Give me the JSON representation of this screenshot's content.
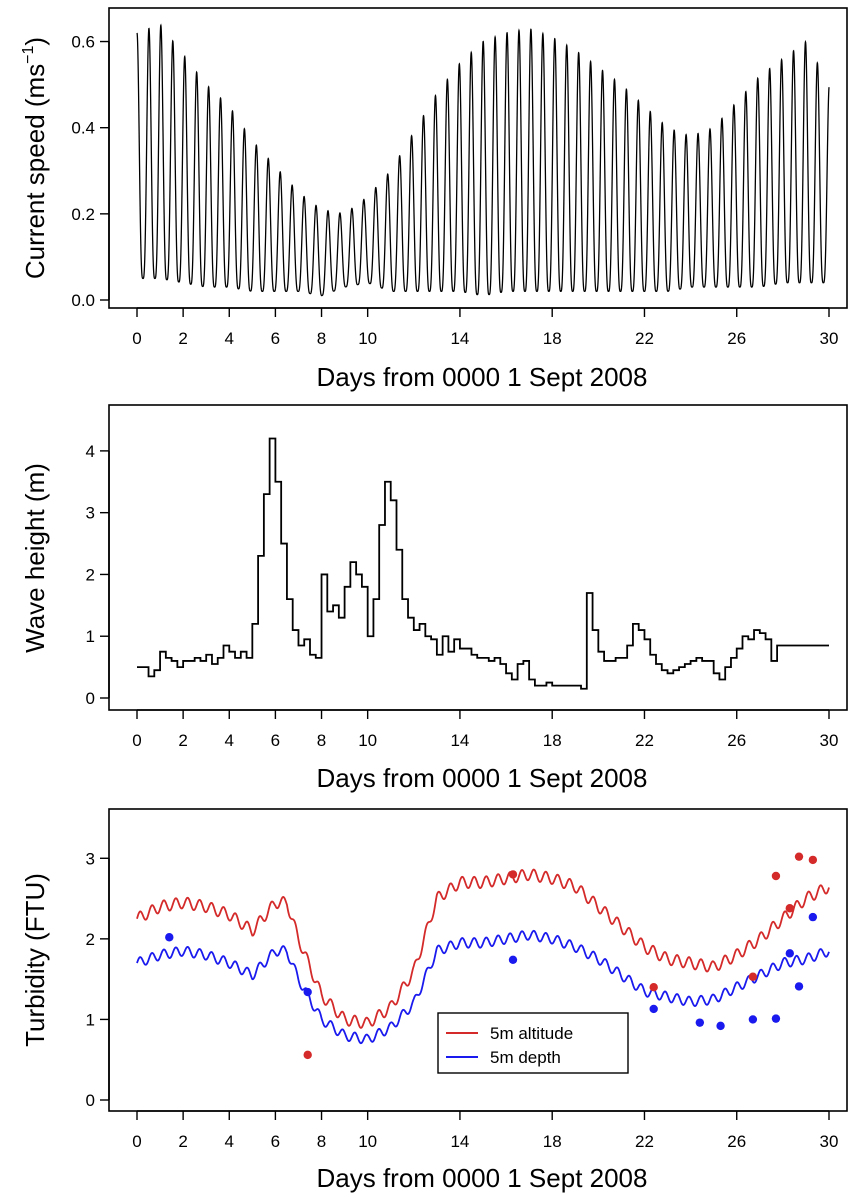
{
  "chart_data": [
    {
      "id": "current",
      "type": "line",
      "title": "",
      "xlabel": "Days from 0000 1 Sept 2008",
      "ylabel": "Current speed (ms",
      "ylabel_unit_exponent": "−1",
      "ylabel_close": ")",
      "xlim": [
        0,
        30
      ],
      "ylim": [
        0.0,
        0.65
      ],
      "x_ticks": [
        0,
        2,
        4,
        6,
        8,
        10,
        14,
        18,
        22,
        26,
        30
      ],
      "x_tick_labels": [
        "0",
        "2",
        "4",
        "6",
        "8",
        "10",
        "14",
        "18",
        "22",
        "26",
        "30"
      ],
      "y_ticks": [
        0.0,
        0.2,
        0.4,
        0.6
      ],
      "y_tick_labels": [
        "0.0",
        "0.2",
        "0.4",
        "0.6"
      ],
      "grid": false,
      "series": [
        {
          "color": "#000000",
          "description_of_signal": "semi-diurnal tidal oscillation, period ~0.5175 days",
          "tidal_period_days": 0.5175,
          "envelope_peak": {
            "x": [
              0,
              1,
              2,
              3,
              4,
              5,
              6,
              7,
              8,
              9,
              10,
              11,
              12,
              13,
              14,
              15,
              16,
              17,
              18,
              19,
              20,
              21,
              22,
              23,
              24,
              25,
              26,
              27,
              28,
              29,
              30
            ],
            "y": [
              0.62,
              0.64,
              0.57,
              0.5,
              0.45,
              0.37,
              0.31,
              0.25,
              0.21,
              0.2,
              0.24,
              0.3,
              0.39,
              0.48,
              0.55,
              0.6,
              0.62,
              0.63,
              0.61,
              0.58,
              0.54,
              0.5,
              0.45,
              0.4,
              0.38,
              0.4,
              0.46,
              0.52,
              0.56,
              0.6,
              0.5
            ]
          },
          "envelope_trough": {
            "x": [
              0,
              1,
              2,
              3,
              4,
              5,
              6,
              7,
              8,
              9,
              10,
              11,
              12,
              13,
              14,
              15,
              16,
              17,
              18,
              19,
              20,
              21,
              22,
              23,
              24,
              25,
              26,
              27,
              28,
              29,
              30
            ],
            "y": [
              0.05,
              0.05,
              0.04,
              0.03,
              0.03,
              0.02,
              0.02,
              0.02,
              0.01,
              0.03,
              0.04,
              0.02,
              0.02,
              0.02,
              0.02,
              0.01,
              0.02,
              0.02,
              0.02,
              0.02,
              0.02,
              0.02,
              0.02,
              0.02,
              0.03,
              0.03,
              0.03,
              0.03,
              0.04,
              0.04,
              0.04
            ]
          }
        }
      ]
    },
    {
      "id": "wave",
      "type": "line",
      "title": "",
      "xlabel": "Days from 0000 1 Sept 2008",
      "ylabel": "Wave height (m)",
      "xlim": [
        0,
        30
      ],
      "ylim": [
        0,
        4.5
      ],
      "x_ticks": [
        0,
        2,
        4,
        6,
        8,
        10,
        14,
        18,
        22,
        26,
        30
      ],
      "x_tick_labels": [
        "0",
        "2",
        "4",
        "6",
        "8",
        "10",
        "14",
        "18",
        "22",
        "26",
        "30"
      ],
      "y_ticks": [
        0,
        1,
        2,
        3,
        4
      ],
      "y_tick_labels": [
        "0",
        "1",
        "2",
        "3",
        "4"
      ],
      "grid": false,
      "series": [
        {
          "color": "#000000",
          "step": true,
          "x": [
            0,
            0.25,
            0.5,
            0.75,
            1.0,
            1.25,
            1.5,
            1.75,
            2.0,
            2.25,
            2.5,
            2.75,
            3.0,
            3.25,
            3.5,
            3.75,
            4.0,
            4.25,
            4.5,
            4.75,
            5.0,
            5.25,
            5.5,
            5.75,
            6.0,
            6.25,
            6.5,
            6.75,
            7.0,
            7.25,
            7.5,
            7.75,
            8.0,
            8.25,
            8.5,
            8.75,
            9.0,
            9.25,
            9.5,
            9.75,
            10.0,
            10.25,
            10.5,
            10.75,
            11.0,
            11.25,
            11.5,
            11.75,
            12.0,
            12.25,
            12.5,
            12.75,
            13.0,
            13.25,
            13.5,
            13.75,
            14.0,
            14.25,
            14.5,
            14.75,
            15.0,
            15.25,
            15.5,
            15.75,
            16.0,
            16.25,
            16.5,
            16.75,
            17.0,
            17.25,
            17.5,
            17.75,
            18.0,
            18.25,
            18.5,
            18.75,
            19.0,
            19.25,
            19.5,
            19.75,
            20.0,
            20.25,
            20.5,
            20.75,
            21.0,
            21.25,
            21.5,
            21.75,
            22.0,
            22.25,
            22.5,
            22.75,
            23.0,
            23.25,
            23.5,
            23.75,
            24.0,
            24.25,
            24.5,
            24.75,
            25.0,
            25.25,
            25.5,
            25.75,
            26.0,
            26.25,
            26.5,
            26.75,
            27.0,
            27.25,
            27.5,
            27.75,
            28.0,
            28.25,
            28.5,
            28.75,
            29.0,
            29.25,
            29.5,
            29.75
          ],
          "y": [
            0.5,
            0.5,
            0.35,
            0.45,
            0.75,
            0.65,
            0.6,
            0.5,
            0.6,
            0.6,
            0.65,
            0.6,
            0.7,
            0.55,
            0.65,
            0.85,
            0.75,
            0.65,
            0.75,
            0.65,
            1.2,
            2.3,
            3.3,
            4.2,
            3.5,
            2.5,
            1.6,
            1.1,
            0.85,
            0.95,
            0.7,
            0.65,
            2.0,
            1.4,
            1.5,
            1.3,
            1.8,
            2.2,
            2.0,
            1.8,
            1.0,
            1.6,
            2.8,
            3.5,
            3.2,
            2.4,
            1.6,
            1.3,
            1.1,
            1.2,
            1.0,
            0.95,
            0.7,
            1.0,
            0.75,
            0.95,
            0.8,
            0.8,
            0.7,
            0.65,
            0.65,
            0.6,
            0.65,
            0.55,
            0.4,
            0.3,
            0.55,
            0.6,
            0.3,
            0.2,
            0.2,
            0.25,
            0.2,
            0.2,
            0.2,
            0.2,
            0.2,
            0.15,
            1.7,
            1.1,
            0.75,
            0.6,
            0.6,
            0.65,
            0.65,
            0.85,
            1.2,
            1.1,
            0.95,
            0.7,
            0.55,
            0.45,
            0.4,
            0.45,
            0.5,
            0.55,
            0.6,
            0.65,
            0.6,
            0.6,
            0.4,
            0.3,
            0.5,
            0.65,
            0.8,
            1.0,
            0.95,
            1.1,
            1.05,
            0.95,
            0.6,
            0.85,
            0.85,
            0.85,
            0.85,
            0.85,
            0.85,
            0.85,
            0.85,
            0.85
          ]
        }
      ]
    },
    {
      "id": "turbidity",
      "type": "line",
      "title": "",
      "xlabel": "Days from 0000 1 Sept 2008",
      "ylabel": "Turbidity (FTU)",
      "xlim": [
        0,
        30
      ],
      "ylim": [
        0,
        3.5
      ],
      "x_ticks": [
        0,
        2,
        4,
        6,
        8,
        10,
        14,
        18,
        22,
        26,
        30
      ],
      "x_tick_labels": [
        "0",
        "2",
        "4",
        "6",
        "8",
        "10",
        "14",
        "18",
        "22",
        "26",
        "30"
      ],
      "y_ticks": [
        0,
        1,
        2,
        3
      ],
      "y_tick_labels": [
        "0",
        "1",
        "2",
        "3"
      ],
      "grid": false,
      "legend": {
        "placement": "lower-center",
        "entries": [
          "5m altitude",
          "5m depth"
        ]
      },
      "series": [
        {
          "name": "5m altitude",
          "color": "#d42a2a",
          "baseline": {
            "x": [
              0,
              1,
              2,
              3,
              4,
              5,
              6,
              6.5,
              7,
              8,
              9,
              10,
              11,
              12,
              13,
              14,
              15,
              16,
              17,
              18,
              19,
              20,
              21,
              22,
              23,
              24,
              25,
              26,
              27,
              28,
              29,
              30
            ],
            "y": [
              2.25,
              2.4,
              2.45,
              2.4,
              2.3,
              2.1,
              2.45,
              2.45,
              2.0,
              1.3,
              1.0,
              0.95,
              1.15,
              1.6,
              2.5,
              2.7,
              2.7,
              2.75,
              2.8,
              2.75,
              2.65,
              2.4,
              2.15,
              1.9,
              1.75,
              1.7,
              1.65,
              1.8,
              2.0,
              2.25,
              2.5,
              2.65
            ]
          },
          "ripple_amplitude": 0.07,
          "ripple_period_days": 0.5175,
          "points": {
            "x": [
              7.4,
              16.3,
              22.4,
              26.7,
              27.7,
              28.3,
              28.7,
              29.3
            ],
            "y": [
              0.56,
              2.8,
              1.4,
              1.53,
              2.78,
              2.38,
              3.02,
              2.98
            ]
          }
        },
        {
          "name": "5m depth",
          "color": "#1a1aee",
          "baseline": {
            "x": [
              0,
              1,
              2,
              3,
              4,
              5,
              6,
              6.5,
              7,
              8,
              9,
              10,
              11,
              12,
              13,
              14,
              15,
              16,
              17,
              18,
              19,
              20,
              21,
              22,
              23,
              24,
              25,
              26,
              27,
              28,
              29,
              30
            ],
            "y": [
              1.7,
              1.8,
              1.85,
              1.8,
              1.7,
              1.55,
              1.85,
              1.85,
              1.5,
              1.0,
              0.8,
              0.75,
              0.9,
              1.2,
              1.85,
              1.95,
              1.95,
              2.0,
              2.05,
              2.0,
              1.9,
              1.75,
              1.55,
              1.35,
              1.28,
              1.22,
              1.25,
              1.4,
              1.55,
              1.7,
              1.75,
              1.85
            ]
          },
          "ripple_amplitude": 0.06,
          "ripple_period_days": 0.5175,
          "points": {
            "x": [
              1.4,
              7.4,
              16.3,
              22.4,
              24.4,
              25.3,
              26.7,
              27.7,
              28.3,
              28.7,
              29.3
            ],
            "y": [
              2.02,
              1.34,
              1.74,
              1.13,
              0.96,
              0.92,
              1.0,
              1.01,
              1.82,
              1.41,
              2.27
            ]
          }
        }
      ]
    }
  ]
}
